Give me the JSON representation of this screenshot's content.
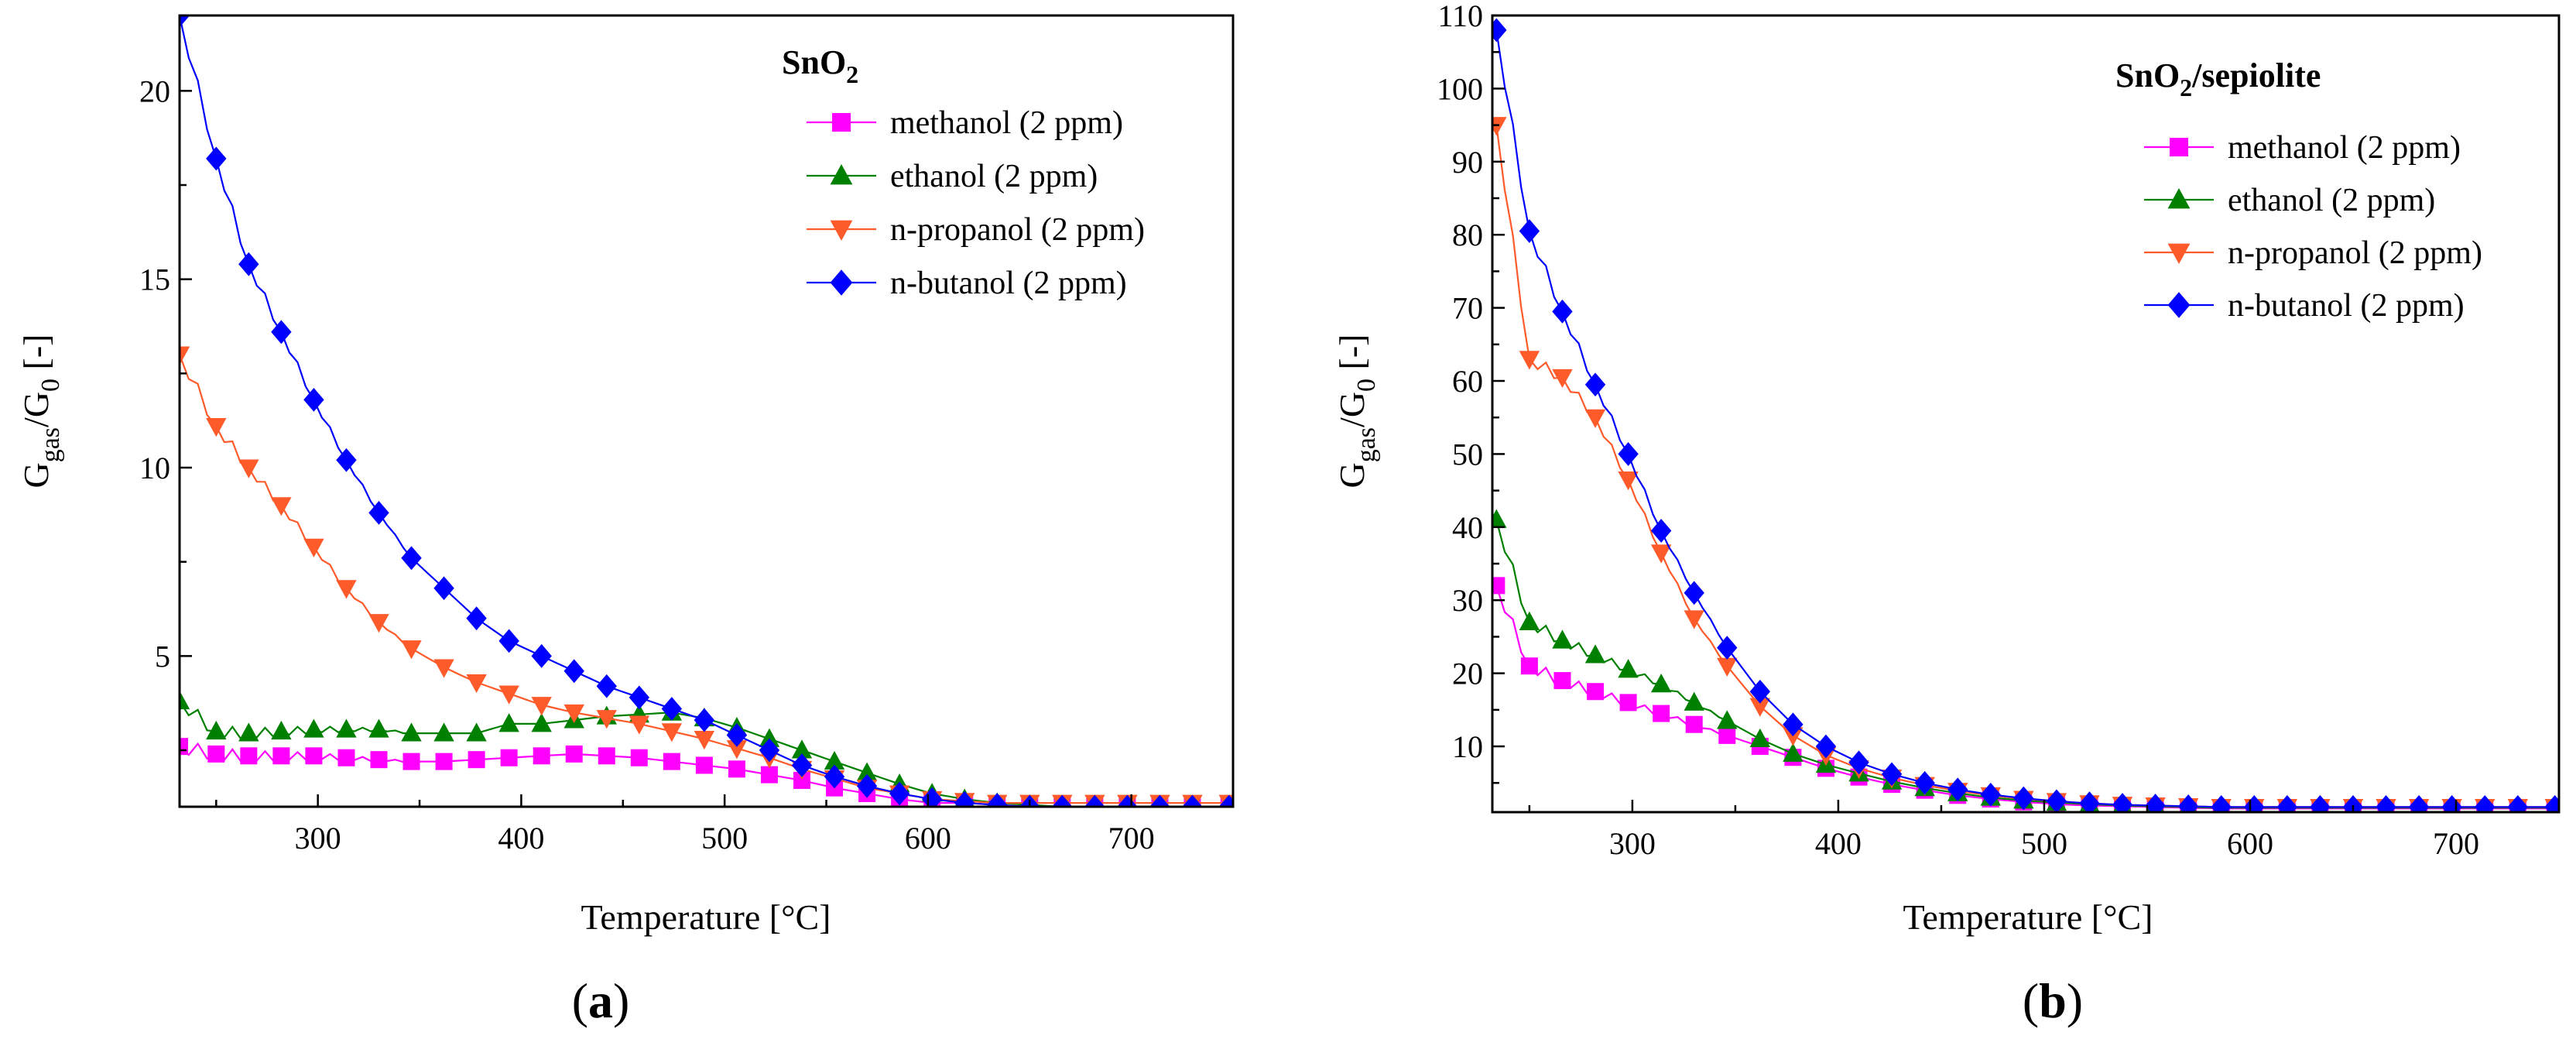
{
  "figure": {
    "panels": [
      "a",
      "b"
    ]
  },
  "chart_data": [
    {
      "type": "line",
      "panel_letter": "a",
      "title": "SnO",
      "title_sub": "2",
      "title_suffix": "",
      "xlabel": "Temperature [°C]",
      "ylabel": {
        "main": "G",
        "sub1": "gas",
        "mid": "/G",
        "sub2": "0",
        "tail": " [-]"
      },
      "xlim": [
        232,
        750
      ],
      "ylim": [
        1,
        22
      ],
      "xticks": [
        300,
        400,
        500,
        600,
        700
      ],
      "yticks": [
        5,
        10,
        15,
        20
      ],
      "legend_position": "top-right",
      "series": [
        {
          "name": "methanol (2 ppm)",
          "color": "#ff00ff",
          "marker": "square",
          "x": [
            232,
            250,
            266,
            282,
            298,
            314,
            330,
            346,
            362,
            378,
            394,
            410,
            426,
            442,
            458,
            474,
            490,
            506,
            522,
            538,
            554,
            570,
            586,
            602,
            618,
            634,
            650,
            666,
            682,
            698,
            714,
            730,
            748
          ],
          "y": [
            2.6,
            2.4,
            2.35,
            2.35,
            2.35,
            2.3,
            2.25,
            2.2,
            2.2,
            2.25,
            2.3,
            2.35,
            2.4,
            2.35,
            2.3,
            2.2,
            2.1,
            2.0,
            1.85,
            1.7,
            1.5,
            1.35,
            1.2,
            1.1,
            1.1,
            1.05,
            1.0,
            1.0,
            1.0,
            1.0,
            1.0,
            1.0,
            1.0
          ]
        },
        {
          "name": "ethanol (2 ppm)",
          "color": "#008000",
          "marker": "triangle-up",
          "x": [
            232,
            250,
            266,
            282,
            298,
            314,
            330,
            346,
            362,
            378,
            394,
            410,
            426,
            442,
            458,
            474,
            490,
            506,
            522,
            538,
            554,
            570,
            586,
            602,
            618,
            634,
            650,
            666,
            682,
            698,
            714,
            730,
            748
          ],
          "y": [
            3.8,
            3.0,
            2.95,
            3.0,
            3.05,
            3.05,
            3.05,
            2.95,
            2.95,
            2.95,
            3.2,
            3.2,
            3.3,
            3.4,
            3.45,
            3.5,
            3.35,
            3.1,
            2.8,
            2.5,
            2.2,
            1.9,
            1.6,
            1.35,
            1.2,
            1.1,
            1.05,
            1.0,
            1.0,
            1.0,
            1.0,
            1.0,
            1.0
          ]
        },
        {
          "name": "n-propanol (2 ppm)",
          "color": "#ff5a2a",
          "marker": "triangle-down",
          "x": [
            232,
            250,
            266,
            282,
            298,
            314,
            330,
            346,
            362,
            378,
            394,
            410,
            426,
            442,
            458,
            474,
            490,
            506,
            522,
            538,
            554,
            570,
            586,
            602,
            618,
            634,
            650,
            666,
            682,
            698,
            714,
            730,
            748
          ],
          "y": [
            13.0,
            11.1,
            10.0,
            9.0,
            7.9,
            6.8,
            5.9,
            5.2,
            4.7,
            4.3,
            4.0,
            3.7,
            3.5,
            3.35,
            3.2,
            3.0,
            2.8,
            2.55,
            2.3,
            2.0,
            1.75,
            1.5,
            1.35,
            1.2,
            1.15,
            1.1,
            1.1,
            1.1,
            1.1,
            1.1,
            1.1,
            1.1,
            1.1
          ]
        },
        {
          "name": "n-butanol (2 ppm)",
          "color": "#0000ff",
          "marker": "diamond",
          "x": [
            232,
            250,
            266,
            282,
            298,
            314,
            330,
            346,
            362,
            378,
            394,
            410,
            426,
            442,
            458,
            474,
            490,
            506,
            522,
            538,
            554,
            570,
            586,
            602,
            618,
            634,
            650,
            666,
            682,
            698,
            714,
            730,
            748
          ],
          "y": [
            22.0,
            18.2,
            15.4,
            13.6,
            11.8,
            10.2,
            8.8,
            7.6,
            6.8,
            6.0,
            5.4,
            5.0,
            4.6,
            4.2,
            3.9,
            3.6,
            3.3,
            2.9,
            2.5,
            2.1,
            1.8,
            1.55,
            1.35,
            1.2,
            1.1,
            1.05,
            1.0,
            1.0,
            1.0,
            1.0,
            1.0,
            1.0,
            1.0
          ]
        }
      ]
    },
    {
      "type": "line",
      "panel_letter": "b",
      "title": "SnO",
      "title_sub": "2",
      "title_suffix": "/sepiolite",
      "xlabel": "Temperature [°C]",
      "ylabel": {
        "main": "G",
        "sub1": "gas",
        "mid": "/G",
        "sub2": "0",
        "tail": " [-]"
      },
      "xlim": [
        232,
        750
      ],
      "ylim": [
        1,
        110
      ],
      "xticks": [
        300,
        400,
        500,
        600,
        700
      ],
      "yticks": [
        10,
        20,
        30,
        40,
        50,
        60,
        70,
        80,
        90,
        100,
        110
      ],
      "legend_position": "top-right",
      "series": [
        {
          "name": "methanol (2 ppm)",
          "color": "#ff00ff",
          "marker": "square",
          "x": [
            234,
            250,
            266,
            282,
            298,
            314,
            330,
            346,
            362,
            378,
            394,
            410,
            426,
            442,
            458,
            474,
            490,
            506,
            522,
            538,
            554,
            570,
            586,
            602,
            618,
            634,
            650,
            666,
            682,
            698,
            714,
            730,
            748
          ],
          "y": [
            32,
            21,
            19,
            17.5,
            16,
            14.5,
            13,
            11.5,
            10,
            8.5,
            7,
            5.8,
            4.8,
            4,
            3.3,
            2.8,
            2.4,
            2.1,
            1.9,
            1.8,
            1.7,
            1.6,
            1.5,
            1.5,
            1.5,
            1.5,
            1.5,
            1.5,
            1.5,
            1.5,
            1.5,
            1.5,
            1.5
          ]
        },
        {
          "name": "ethanol (2 ppm)",
          "color": "#008000",
          "marker": "triangle-up",
          "x": [
            234,
            250,
            266,
            282,
            298,
            314,
            330,
            346,
            362,
            378,
            394,
            410,
            426,
            442,
            458,
            474,
            490,
            506,
            522,
            538,
            554,
            570,
            586,
            602,
            618,
            634,
            650,
            666,
            682,
            698,
            714,
            730,
            748
          ],
          "y": [
            41,
            27,
            24.5,
            22.5,
            20.5,
            18.5,
            16,
            13.5,
            11,
            9,
            7.5,
            6.3,
            5.2,
            4.3,
            3.6,
            3.0,
            2.6,
            2.3,
            2.1,
            1.9,
            1.8,
            1.7,
            1.6,
            1.6,
            1.6,
            1.6,
            1.6,
            1.6,
            1.6,
            1.6,
            1.6,
            1.6,
            1.6
          ]
        },
        {
          "name": "n-propanol (2 ppm)",
          "color": "#ff5a2a",
          "marker": "triangle-down",
          "x": [
            234,
            250,
            266,
            282,
            298,
            314,
            330,
            346,
            362,
            378,
            394,
            410,
            426,
            442,
            458,
            474,
            490,
            506,
            522,
            538,
            554,
            570,
            586,
            602,
            618,
            634,
            650,
            666,
            682,
            698,
            714,
            730,
            748
          ],
          "y": [
            95,
            63,
            60.5,
            55,
            46.5,
            36.5,
            27.5,
            21,
            15.5,
            11.5,
            8.8,
            7,
            5.7,
            4.7,
            3.9,
            3.3,
            2.8,
            2.5,
            2.2,
            2.0,
            1.9,
            1.8,
            1.7,
            1.7,
            1.7,
            1.7,
            1.7,
            1.7,
            1.7,
            1.7,
            1.7,
            1.7,
            1.7
          ]
        },
        {
          "name": "n-butanol (2 ppm)",
          "color": "#0000ff",
          "marker": "diamond",
          "x": [
            234,
            250,
            266,
            282,
            298,
            314,
            330,
            346,
            362,
            378,
            394,
            410,
            426,
            442,
            458,
            474,
            490,
            506,
            522,
            538,
            554,
            570,
            586,
            602,
            618,
            634,
            650,
            666,
            682,
            698,
            714,
            730,
            748
          ],
          "y": [
            108,
            80.5,
            69.5,
            59.5,
            50,
            39.5,
            31,
            23.5,
            17.5,
            13,
            10,
            7.8,
            6.2,
            5,
            4.1,
            3.4,
            2.9,
            2.5,
            2.2,
            2.0,
            1.9,
            1.8,
            1.7,
            1.7,
            1.7,
            1.7,
            1.7,
            1.7,
            1.7,
            1.7,
            1.7,
            1.7,
            1.7
          ]
        }
      ]
    }
  ]
}
